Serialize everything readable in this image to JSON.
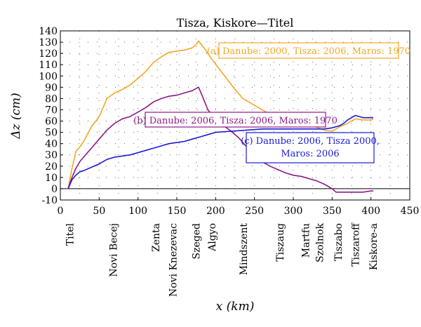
{
  "chart_data": {
    "type": "line",
    "title": "Tisza, Kiskore—Titel",
    "xlabel": "x (km)",
    "ylabel": "Δz (cm)",
    "xlim": [
      0,
      450
    ],
    "ylim": [
      -10,
      140
    ],
    "xticks": [
      0,
      50,
      100,
      150,
      200,
      250,
      300,
      350,
      400,
      450
    ],
    "yticks": [
      -10,
      0,
      10,
      20,
      30,
      40,
      50,
      60,
      70,
      80,
      90,
      100,
      110,
      120,
      130,
      140
    ],
    "grid": "dotted",
    "stations": [
      {
        "name": "Titel",
        "x": 12
      },
      {
        "name": "Novi Becej",
        "x": 68
      },
      {
        "name": "Zenta",
        "x": 123
      },
      {
        "name": "Novi Knezevac",
        "x": 145
      },
      {
        "name": "Szeged",
        "x": 175
      },
      {
        "name": "Algyo",
        "x": 195
      },
      {
        "name": "Mindszent",
        "x": 236
      },
      {
        "name": "Tiszaug",
        "x": 283
      },
      {
        "name": "Martfu",
        "x": 316
      },
      {
        "name": "Szolnok",
        "x": 334
      },
      {
        "name": "Tiszabo",
        "x": 358
      },
      {
        "name": "Tiszaroff",
        "x": 380
      },
      {
        "name": "Kiskore-a",
        "x": 403
      }
    ],
    "series": [
      {
        "name": "(a) Danube: 2000, Tisza: 2006, Maros: 1970",
        "color": "#f5a623",
        "x": [
          10,
          15,
          20,
          25,
          30,
          40,
          50,
          60,
          70,
          80,
          90,
          100,
          110,
          120,
          130,
          140,
          150,
          160,
          170,
          175,
          178,
          185,
          195,
          205,
          215,
          225,
          235,
          245,
          255,
          265,
          275,
          285,
          300,
          320,
          340,
          350,
          360,
          370,
          380,
          390,
          400,
          403
        ],
        "values": [
          0,
          18,
          33,
          37,
          42,
          55,
          64,
          80,
          85,
          88,
          92,
          98,
          104,
          112,
          117,
          121,
          122,
          123,
          125,
          128,
          131,
          125,
          115,
          106,
          97,
          88,
          80,
          76,
          72,
          68,
          66,
          64,
          62,
          57,
          52,
          51,
          55,
          58,
          62,
          61,
          61,
          62
        ]
      },
      {
        "name": "(b) Danube: 2006, Tisza: 2006, Maros: 1970",
        "color": "#8b1a89",
        "x": [
          10,
          15,
          20,
          25,
          30,
          40,
          50,
          60,
          70,
          80,
          90,
          100,
          110,
          120,
          130,
          140,
          150,
          160,
          170,
          175,
          178,
          183,
          190,
          200,
          210,
          220,
          230,
          240,
          250,
          260,
          270,
          280,
          290,
          300,
          310,
          320,
          330,
          340,
          350,
          355,
          360,
          370,
          380,
          390,
          400,
          403
        ],
        "values": [
          0,
          10,
          18,
          24,
          28,
          36,
          44,
          52,
          58,
          62,
          64,
          68,
          72,
          77,
          80,
          82,
          83,
          85,
          87,
          89,
          90,
          82,
          70,
          61,
          56,
          51,
          45,
          37,
          30,
          24,
          20,
          17,
          14,
          12,
          11,
          9,
          7,
          4,
          0,
          -3,
          -3,
          -3,
          -3,
          -3,
          -2,
          -2
        ]
      },
      {
        "name": "(c) Danube: 2006, Tisza 2000, Maros: 2006",
        "color": "#1a1ad4",
        "x": [
          10,
          15,
          20,
          25,
          30,
          40,
          50,
          60,
          70,
          80,
          90,
          100,
          110,
          120,
          130,
          140,
          150,
          160,
          170,
          180,
          190,
          200,
          220,
          240,
          260,
          280,
          300,
          320,
          340,
          350,
          360,
          365,
          370,
          380,
          390,
          400,
          403
        ],
        "values": [
          0,
          8,
          12,
          15,
          16,
          19,
          22,
          26,
          28,
          29,
          30,
          32,
          34,
          36,
          38,
          40,
          41,
          42,
          44,
          46,
          48,
          50,
          51,
          52,
          53,
          53,
          53,
          53,
          53,
          54,
          56,
          58,
          61,
          65,
          63,
          63,
          63
        ]
      }
    ],
    "legend_boxes": [
      {
        "series": 0,
        "anchor": "upper-right"
      },
      {
        "series": 1,
        "anchor": "center"
      },
      {
        "series": 2,
        "anchor": "right",
        "lines": [
          "(c) Danube: 2006, Tisza 2000,",
          "Maros: 2006"
        ]
      }
    ]
  }
}
